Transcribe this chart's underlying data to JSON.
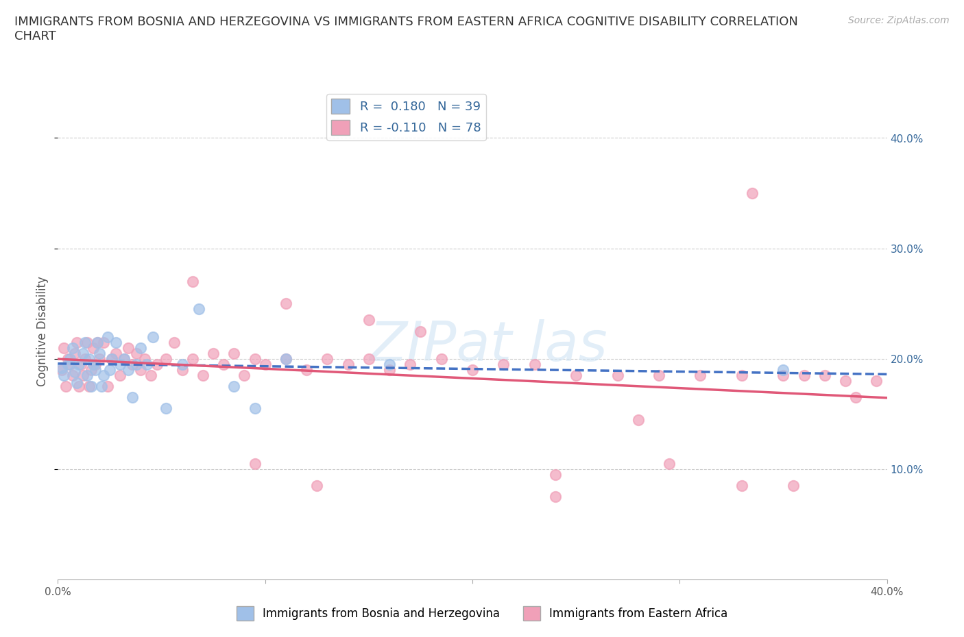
{
  "title": "IMMIGRANTS FROM BOSNIA AND HERZEGOVINA VS IMMIGRANTS FROM EASTERN AFRICA COGNITIVE DISABILITY CORRELATION\nCHART",
  "source": "Source: ZipAtlas.com",
  "ylabel": "Cognitive Disability",
  "xlim": [
    0.0,
    0.4
  ],
  "ylim": [
    0.0,
    0.45
  ],
  "x_ticks": [
    0.0,
    0.1,
    0.2,
    0.3,
    0.4
  ],
  "x_tick_labels": [
    "0.0%",
    "",
    "",
    "",
    "40.0%"
  ],
  "y_ticks": [
    0.1,
    0.2,
    0.3,
    0.4
  ],
  "right_y_tick_labels": [
    "10.0%",
    "20.0%",
    "30.0%",
    "40.0%"
  ],
  "color_blue": "#a0c0e8",
  "color_pink": "#f0a0b8",
  "line_blue": "#4472c4",
  "line_pink": "#e05878",
  "R1": 0.18,
  "N1": 39,
  "R2": -0.11,
  "N2": 78,
  "bosnia_x": [
    0.002,
    0.003,
    0.005,
    0.006,
    0.007,
    0.008,
    0.009,
    0.01,
    0.012,
    0.013,
    0.014,
    0.015,
    0.016,
    0.017,
    0.018,
    0.019,
    0.02,
    0.021,
    0.022,
    0.024,
    0.025,
    0.026,
    0.028,
    0.03,
    0.032,
    0.034,
    0.036,
    0.038,
    0.04,
    0.043,
    0.046,
    0.052,
    0.06,
    0.068,
    0.085,
    0.095,
    0.11,
    0.16,
    0.35
  ],
  "bosnia_y": [
    0.192,
    0.185,
    0.195,
    0.2,
    0.21,
    0.188,
    0.178,
    0.195,
    0.205,
    0.215,
    0.185,
    0.2,
    0.175,
    0.195,
    0.19,
    0.215,
    0.205,
    0.175,
    0.185,
    0.22,
    0.19,
    0.2,
    0.215,
    0.195,
    0.2,
    0.19,
    0.165,
    0.195,
    0.21,
    0.195,
    0.22,
    0.155,
    0.195,
    0.245,
    0.175,
    0.155,
    0.2,
    0.195,
    0.19
  ],
  "eastern_x": [
    0.002,
    0.003,
    0.004,
    0.005,
    0.006,
    0.007,
    0.008,
    0.009,
    0.01,
    0.011,
    0.012,
    0.013,
    0.014,
    0.015,
    0.016,
    0.017,
    0.018,
    0.019,
    0.02,
    0.022,
    0.024,
    0.026,
    0.028,
    0.03,
    0.032,
    0.034,
    0.036,
    0.038,
    0.04,
    0.042,
    0.045,
    0.048,
    0.052,
    0.056,
    0.06,
    0.065,
    0.07,
    0.075,
    0.08,
    0.085,
    0.09,
    0.095,
    0.1,
    0.11,
    0.12,
    0.13,
    0.14,
    0.15,
    0.16,
    0.17,
    0.185,
    0.2,
    0.215,
    0.23,
    0.25,
    0.27,
    0.29,
    0.31,
    0.33,
    0.35,
    0.36,
    0.37,
    0.38,
    0.395,
    0.065,
    0.11,
    0.15,
    0.175,
    0.24,
    0.24,
    0.28,
    0.33,
    0.335,
    0.355,
    0.385,
    0.095,
    0.125,
    0.295
  ],
  "eastern_y": [
    0.19,
    0.21,
    0.175,
    0.2,
    0.195,
    0.185,
    0.205,
    0.215,
    0.175,
    0.195,
    0.185,
    0.2,
    0.215,
    0.175,
    0.19,
    0.21,
    0.195,
    0.215,
    0.2,
    0.215,
    0.175,
    0.2,
    0.205,
    0.185,
    0.2,
    0.21,
    0.195,
    0.205,
    0.19,
    0.2,
    0.185,
    0.195,
    0.2,
    0.215,
    0.19,
    0.2,
    0.185,
    0.205,
    0.195,
    0.205,
    0.185,
    0.2,
    0.195,
    0.2,
    0.19,
    0.2,
    0.195,
    0.2,
    0.19,
    0.195,
    0.2,
    0.19,
    0.195,
    0.195,
    0.185,
    0.185,
    0.185,
    0.185,
    0.185,
    0.185,
    0.185,
    0.185,
    0.18,
    0.18,
    0.27,
    0.25,
    0.235,
    0.225,
    0.095,
    0.075,
    0.145,
    0.085,
    0.35,
    0.085,
    0.165,
    0.105,
    0.085,
    0.105
  ]
}
